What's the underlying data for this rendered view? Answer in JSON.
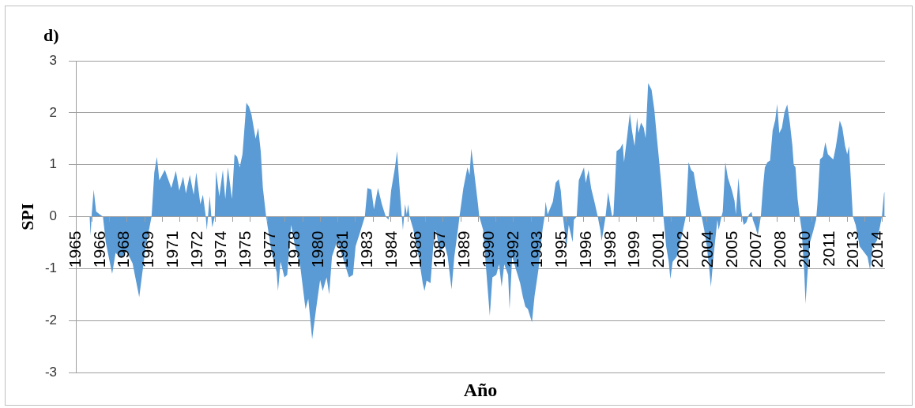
{
  "chart_data": {
    "type": "area",
    "title": "d)",
    "xlabel": "Año",
    "ylabel": "SPI",
    "color": "#5b9bd5",
    "grid": "y",
    "ylim": [
      -3,
      3
    ],
    "yticks": [
      -3,
      -2,
      -1,
      0,
      1,
      2,
      3
    ],
    "xlim": [
      1965,
      2014.92
    ],
    "xticks": [
      1965,
      {
        "value": 1966,
        "label": null
      },
      {
        "value": 1966.5,
        "label": "1966"
      },
      {
        "value": 1967.0833,
        "label": null
      },
      1968,
      {
        "value": 1968.1667,
        "label": null
      },
      {
        "value": 1969.25,
        "label": null
      },
      {
        "value": 1969.5,
        "label": "1969"
      },
      {
        "value": 1970.3333,
        "label": null
      },
      1971,
      {
        "value": 1971.4167,
        "label": null
      },
      {
        "value": 1972.5,
        "label": null
      },
      {
        "value": 1972.5,
        "label": "1972"
      },
      {
        "value": 1973.5833,
        "label": null
      },
      1974,
      {
        "value": 1974.6667,
        "label": null
      },
      {
        "value": 1975.5,
        "label": "1975"
      },
      {
        "value": 1975.75,
        "label": null
      },
      {
        "value": 1976.8333,
        "label": null
      },
      1977,
      {
        "value": 1977.9167,
        "label": null
      },
      {
        "value": 1978.5,
        "label": "1978"
      },
      {
        "value": 1979,
        "label": null
      },
      1980,
      {
        "value": 1980.0833,
        "label": null
      },
      {
        "value": 1981.1667,
        "label": null
      },
      {
        "value": 1981.5,
        "label": "1981"
      },
      {
        "value": 1982.25,
        "label": null
      },
      1983,
      {
        "value": 1983.3333,
        "label": null
      },
      {
        "value": 1984.4167,
        "label": null
      },
      {
        "value": 1984.5,
        "label": "1984"
      },
      {
        "value": 1985.5,
        "label": null
      },
      1986,
      {
        "value": 1986.5833,
        "label": null
      },
      {
        "value": 1987.5,
        "label": "1987"
      },
      {
        "value": 1987.6667,
        "label": null
      },
      {
        "value": 1988.75,
        "label": null
      },
      1989,
      {
        "value": 1989.8333,
        "label": null
      },
      {
        "value": 1990.5,
        "label": "1990"
      },
      {
        "value": 1990.9167,
        "label": null
      },
      {
        "value": 1992,
        "label": null
      },
      1992,
      {
        "value": 1993.0833,
        "label": null
      },
      {
        "value": 1993.5,
        "label": "1993"
      },
      {
        "value": 1994.1667,
        "label": null
      },
      1995,
      {
        "value": 1995.25,
        "label": null
      },
      {
        "value": 1996.3333,
        "label": null
      },
      {
        "value": 1996.5,
        "label": "1996"
      },
      {
        "value": 1997.4167,
        "label": null
      },
      1998,
      {
        "value": 1998.5,
        "label": null
      },
      {
        "value": 1999.5,
        "label": "1999"
      },
      {
        "value": 1999.5833,
        "label": null
      },
      {
        "value": 2000.6667,
        "label": null
      },
      2001,
      {
        "value": 2001.75,
        "label": null
      },
      {
        "value": 2002.5,
        "label": "2002"
      },
      {
        "value": 2002.8333,
        "label": null
      },
      {
        "value": 2003.9167,
        "label": null
      },
      2004,
      {
        "value": 2005,
        "label": null
      },
      {
        "value": 2005.5,
        "label": "2005"
      },
      {
        "value": 2006.0833,
        "label": null
      },
      2007,
      {
        "value": 2007.1667,
        "label": null
      },
      {
        "value": 2008.25,
        "label": null
      },
      {
        "value": 2008.5,
        "label": "2008"
      },
      {
        "value": 2009.3333,
        "label": null
      },
      2010,
      {
        "value": 2010.4167,
        "label": null
      },
      {
        "value": 2011.5,
        "label": null
      },
      {
        "value": 2011.5,
        "label": "2011"
      },
      {
        "value": 2012.5833,
        "label": null
      },
      2013,
      {
        "value": 2013.6667,
        "label": null
      },
      {
        "value": 2014.5,
        "label": "2014"
      },
      {
        "value": 2014.75,
        "label": null
      }
    ],
    "x": [
      1965.0,
      1965.85,
      1965.91,
      1965.98,
      1966.1,
      1966.25,
      1966.45,
      1966.67,
      1966.85,
      1967.24,
      1967.45,
      1967.8,
      1968.13,
      1968.5,
      1968.91,
      1969.3,
      1969.67,
      1969.84,
      1970.0,
      1970.15,
      1970.49,
      1970.89,
      1971.17,
      1971.38,
      1971.62,
      1971.79,
      1972.03,
      1972.27,
      1972.43,
      1972.68,
      1972.84,
      1973.0,
      1973.08,
      1973.26,
      1973.41,
      1973.57,
      1973.65,
      1973.85,
      1974.07,
      1974.22,
      1974.38,
      1974.63,
      1974.79,
      1974.95,
      1975.11,
      1975.28,
      1975.52,
      1975.68,
      1975.84,
      1976.09,
      1976.25,
      1976.41,
      1976.54,
      1976.74,
      1977.06,
      1977.39,
      1977.47,
      1977.63,
      1977.87,
      1978.04,
      1978.28,
      1978.52,
      1978.85,
      1979.17,
      1979.34,
      1979.58,
      1979.82,
      1980.07,
      1980.23,
      1980.47,
      1980.63,
      1980.8,
      1981.12,
      1981.45,
      1981.85,
      1982.1,
      1982.26,
      1982.58,
      1982.83,
      1982.99,
      1983.23,
      1983.39,
      1983.64,
      1983.88,
      1984.12,
      1984.29,
      1984.45,
      1984.69,
      1984.82,
      1984.94,
      1985.1,
      1985.18,
      1985.31,
      1985.42,
      1985.5,
      1985.59,
      1985.83,
      1986.15,
      1986.4,
      1986.51,
      1986.64,
      1986.88,
      1987.05,
      1987.21,
      1987.45,
      1987.78,
      1987.94,
      1988.18,
      1988.35,
      1988.59,
      1988.67,
      1988.91,
      1989.16,
      1989.29,
      1989.4,
      1989.56,
      1989.81,
      1989.89,
      1990.13,
      1990.38,
      1990.54,
      1990.7,
      1990.94,
      1991.11,
      1991.27,
      1991.43,
      1991.67,
      1991.76,
      1991.92,
      1992.16,
      1992.41,
      1992.57,
      1992.73,
      1992.89,
      1993.14,
      1993.3,
      1993.54,
      1993.79,
      1993.92,
      1993.98,
      1994.11,
      1994.43,
      1994.6,
      1994.79,
      1994.92,
      1995.05,
      1995.17,
      1995.25,
      1995.41,
      1995.65,
      1995.73,
      1995.9,
      1996.03,
      1996.22,
      1996.35,
      1996.46,
      1996.63,
      1996.79,
      1997.03,
      1997.2,
      1997.36,
      1997.44,
      1997.6,
      1997.68,
      1997.84,
      1998.01,
      1998.09,
      1998.17,
      1998.36,
      1998.58,
      1998.74,
      1998.82,
      1998.98,
      1999.18,
      1999.31,
      1999.47,
      1999.63,
      1999.71,
      1999.87,
      2000.04,
      2000.15,
      2000.31,
      2000.52,
      2000.69,
      2000.85,
      2001.01,
      2001.17,
      2001.25,
      2001.42,
      2001.58,
      2001.68,
      2001.82,
      2002.07,
      2002.39,
      2002.63,
      2002.8,
      2002.96,
      2003.12,
      2003.36,
      2003.61,
      2003.77,
      2003.93,
      2004.1,
      2004.18,
      2004.34,
      2004.58,
      2004.66,
      2004.83,
      2004.91,
      2005.07,
      2005.23,
      2005.48,
      2005.64,
      2005.72,
      2005.88,
      2006.04,
      2006.13,
      2006.21,
      2006.37,
      2006.53,
      2006.69,
      2006.77,
      2006.94,
      2007.07,
      2007.18,
      2007.26,
      2007.39,
      2007.51,
      2007.67,
      2007.83,
      2007.99,
      2008.15,
      2008.27,
      2008.4,
      2008.56,
      2008.72,
      2008.89,
      2009.05,
      2009.21,
      2009.29,
      2009.4,
      2009.53,
      2009.66,
      2009.78,
      2009.94,
      2010.02,
      2010.1,
      2010.27,
      2010.51,
      2010.67,
      2010.75,
      2010.91,
      2011.08,
      2011.24,
      2011.4,
      2011.56,
      2011.73,
      2011.89,
      2012.13,
      2012.29,
      2012.46,
      2012.59,
      2012.7,
      2012.81,
      2012.94,
      2013.11,
      2013.35,
      2013.59,
      2013.84,
      2014.0,
      2014.16,
      2014.41,
      2014.57,
      2014.73,
      2014.86,
      2014.9
    ],
    "values": [
      0,
      0,
      -0.36,
      0.05,
      0.52,
      0.1,
      0.05,
      0,
      -0.5,
      -1.1,
      -0.7,
      -0.8,
      -0.67,
      -0.9,
      -1.55,
      -0.6,
      0,
      0.85,
      1.15,
      0.7,
      0.9,
      0.55,
      0.88,
      0.5,
      0.77,
      0.45,
      0.8,
      0.42,
      0.85,
      0.24,
      0.42,
      0.04,
      -0.26,
      0.4,
      -0.21,
      0,
      0.88,
      0.39,
      0.9,
      0.34,
      0.95,
      0.34,
      1.2,
      1.15,
      0.95,
      1.2,
      2.19,
      2.12,
      1.96,
      1.5,
      1.71,
      1.25,
      0.55,
      0,
      -0.67,
      -1.07,
      -1.43,
      -0.87,
      -1.17,
      -1.12,
      -0.16,
      -0.57,
      -0.97,
      -1.78,
      -1.58,
      -2.36,
      -1.78,
      -1.22,
      -1.43,
      -1.17,
      -1.5,
      -0.77,
      -0.47,
      -0.77,
      -1.17,
      -1.12,
      -0.57,
      -0.26,
      0,
      0.55,
      0.52,
      0.14,
      0.55,
      0.24,
      0,
      -0.06,
      0.5,
      0.95,
      1.26,
      0.7,
      0.04,
      -0.26,
      0.24,
      0.04,
      0.24,
      0,
      -0.26,
      -0.77,
      -1.28,
      -1.43,
      -1.23,
      -1.28,
      -0.57,
      -0.26,
      -0.67,
      -0.57,
      -0.77,
      -1.4,
      -0.77,
      -0.21,
      0,
      0.55,
      0.95,
      0.8,
      1.31,
      0.9,
      0.24,
      0,
      -0.26,
      -1.28,
      -1.91,
      -1.17,
      -1.12,
      -0.92,
      -1.35,
      -0.92,
      -1.12,
      -1.78,
      -0.77,
      -1.02,
      -1.28,
      -1.53,
      -1.73,
      -1.78,
      -2.03,
      -1.53,
      -1.02,
      -0.26,
      0,
      0.29,
      0.04,
      0.29,
      0.65,
      0.72,
      0.5,
      0,
      -0.3,
      -0.62,
      -0.16,
      -0.49,
      -0.06,
      0,
      0.7,
      0.85,
      0.95,
      0.65,
      0.9,
      0.55,
      0.24,
      0,
      -0.26,
      -0.47,
      -0.16,
      0,
      0.47,
      0.14,
      0,
      0.04,
      1.26,
      1.31,
      1.41,
      1.05,
      1.46,
      1.99,
      1.66,
      1.36,
      1.91,
      1.61,
      1.81,
      1.71,
      1.51,
      2.57,
      2.44,
      2.06,
      1.51,
      1,
      0.45,
      0,
      -0.57,
      -0.87,
      -1.2,
      -0.87,
      -0.77,
      -0.36,
      0,
      1.05,
      0.9,
      0.85,
      0.39,
      0,
      -0.26,
      -0.57,
      -1.07,
      -1.35,
      -0.77,
      -0.06,
      -0.26,
      0,
      0.09,
      1.05,
      0.75,
      0.5,
      0.3,
      0.04,
      0.75,
      0.14,
      -0.06,
      -0.16,
      -0.11,
      0.04,
      0.09,
      -0.06,
      -0.21,
      -0.36,
      -0.16,
      0,
      0.55,
      0.95,
      1.05,
      1.08,
      1.66,
      1.86,
      2.17,
      1.61,
      1.71,
      2.01,
      2.16,
      1.81,
      1.36,
      1,
      0.95,
      0.34,
      0,
      -0.26,
      -1.07,
      -1.68,
      -1.28,
      -0.52,
      -0.26,
      -0.06,
      0.24,
      1.1,
      1.15,
      1.43,
      1.2,
      1.15,
      1.1,
      1.35,
      1.85,
      1.71,
      1.36,
      1.2,
      1.36,
      0.75,
      0,
      -0.16,
      -0.57,
      -0.67,
      -0.77,
      -1.02,
      -0.57,
      -0.47,
      -0.26,
      0,
      0.45,
      0.48
    ]
  }
}
